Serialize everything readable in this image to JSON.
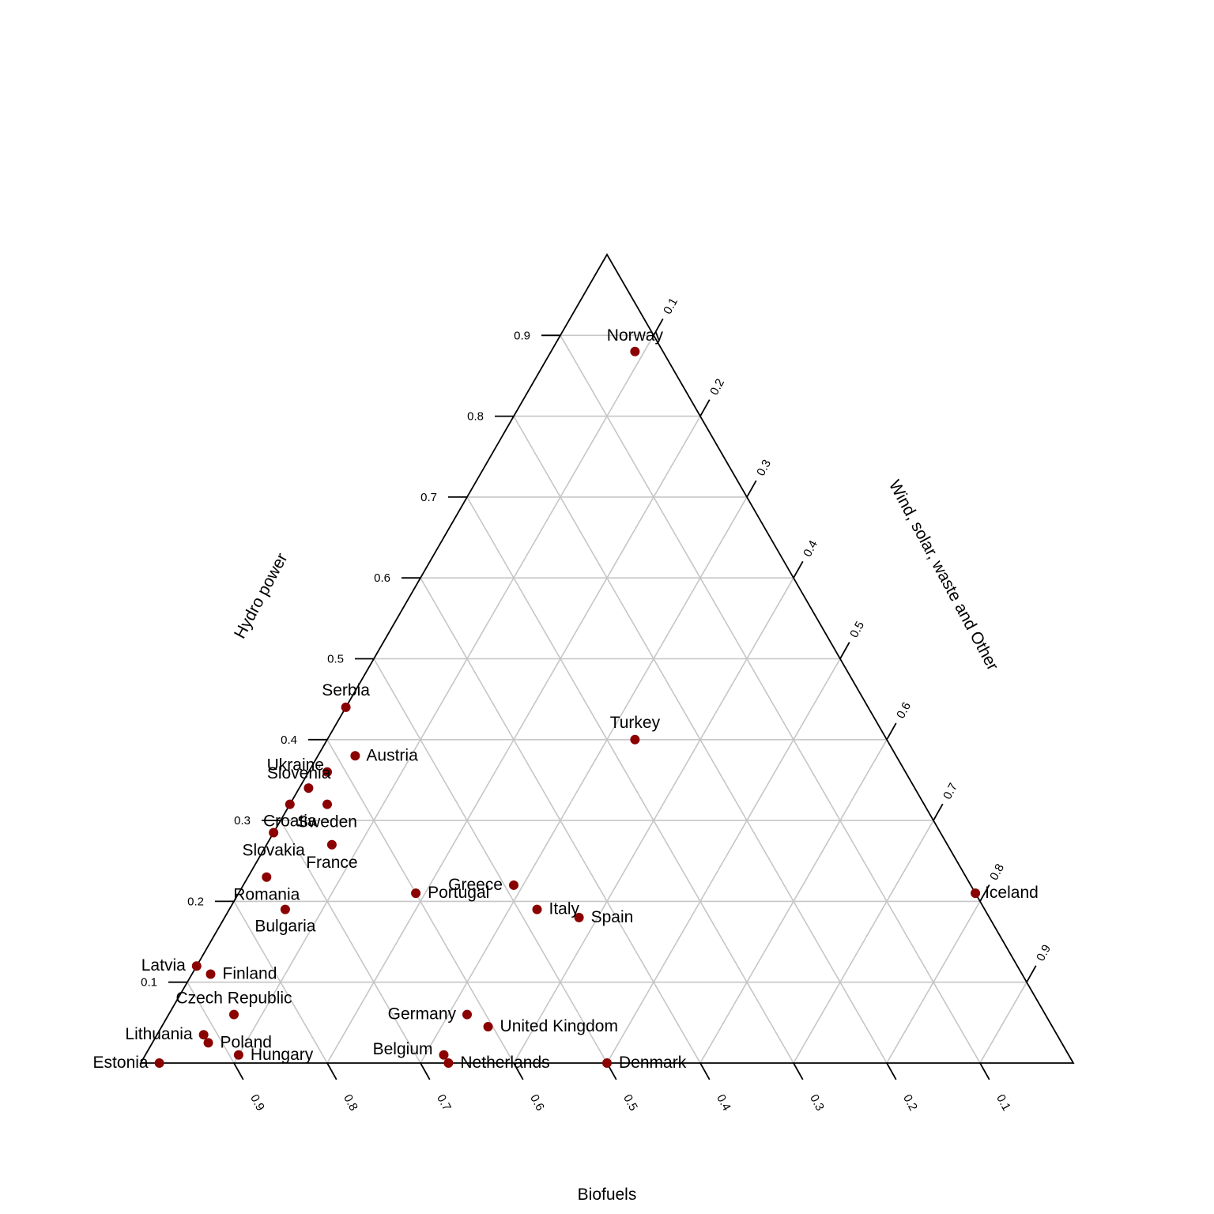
{
  "chart_data": {
    "type": "scatter",
    "subtype": "ternary",
    "title": "",
    "axes": {
      "left": {
        "label": "Hydro power",
        "ticks": [
          "0.1",
          "0.2",
          "0.3",
          "0.4",
          "0.5",
          "0.6",
          "0.7",
          "0.8",
          "0.9"
        ]
      },
      "right": {
        "label": "Wind, solar, waste and Other",
        "ticks": [
          "0.1",
          "0.2",
          "0.3",
          "0.4",
          "0.5",
          "0.6",
          "0.7",
          "0.8",
          "0.9"
        ]
      },
      "bottom": {
        "label": "Biofuels",
        "ticks": [
          "0.9",
          "0.8",
          "0.7",
          "0.6",
          "0.5",
          "0.4",
          "0.3",
          "0.2",
          "0.1"
        ]
      }
    },
    "grid": true,
    "point_color": "#8b0000",
    "points": [
      {
        "name": "Norway",
        "hydro": 0.88,
        "wind_solar_other": 0.09,
        "biofuels": 0.03
      },
      {
        "name": "Serbia",
        "hydro": 0.44,
        "wind_solar_other": 0.0,
        "biofuels": 0.56
      },
      {
        "name": "Turkey",
        "hydro": 0.4,
        "wind_solar_other": 0.33,
        "biofuels": 0.27
      },
      {
        "name": "Austria",
        "hydro": 0.38,
        "wind_solar_other": 0.04,
        "biofuels": 0.58
      },
      {
        "name": "Ukraine",
        "hydro": 0.36,
        "wind_solar_other": 0.02,
        "biofuels": 0.62
      },
      {
        "name": "Slovenia",
        "hydro": 0.34,
        "wind_solar_other": 0.01,
        "biofuels": 0.65
      },
      {
        "name": "Croatia",
        "hydro": 0.32,
        "wind_solar_other": 0.0,
        "biofuels": 0.68
      },
      {
        "name": "Sweden",
        "hydro": 0.32,
        "wind_solar_other": 0.04,
        "biofuels": 0.64
      },
      {
        "name": "Slovakia",
        "hydro": 0.285,
        "wind_solar_other": 0.0,
        "biofuels": 0.715
      },
      {
        "name": "France",
        "hydro": 0.27,
        "wind_solar_other": 0.07,
        "biofuels": 0.66
      },
      {
        "name": "Romania",
        "hydro": 0.23,
        "wind_solar_other": 0.02,
        "biofuels": 0.75
      },
      {
        "name": "Greece",
        "hydro": 0.22,
        "wind_solar_other": 0.29,
        "biofuels": 0.49
      },
      {
        "name": "Portugal",
        "hydro": 0.21,
        "wind_solar_other": 0.19,
        "biofuels": 0.6
      },
      {
        "name": "Iceland",
        "hydro": 0.21,
        "wind_solar_other": 0.79,
        "biofuels": 0.0
      },
      {
        "name": "Bulgaria",
        "hydro": 0.19,
        "wind_solar_other": 0.06,
        "biofuels": 0.75
      },
      {
        "name": "Italy",
        "hydro": 0.19,
        "wind_solar_other": 0.33,
        "biofuels": 0.48
      },
      {
        "name": "Spain",
        "hydro": 0.18,
        "wind_solar_other": 0.38,
        "biofuels": 0.44
      },
      {
        "name": "Latvia",
        "hydro": 0.12,
        "wind_solar_other": 0.0,
        "biofuels": 0.88
      },
      {
        "name": "Finland",
        "hydro": 0.11,
        "wind_solar_other": 0.02,
        "biofuels": 0.87
      },
      {
        "name": "Czech Republic",
        "hydro": 0.06,
        "wind_solar_other": 0.07,
        "biofuels": 0.87
      },
      {
        "name": "Germany",
        "hydro": 0.06,
        "wind_solar_other": 0.32,
        "biofuels": 0.62
      },
      {
        "name": "United Kingdom",
        "hydro": 0.045,
        "wind_solar_other": 0.35,
        "biofuels": 0.605
      },
      {
        "name": "Lithuania",
        "hydro": 0.035,
        "wind_solar_other": 0.05,
        "biofuels": 0.915
      },
      {
        "name": "Poland",
        "hydro": 0.025,
        "wind_solar_other": 0.06,
        "biofuels": 0.915
      },
      {
        "name": "Belgium",
        "hydro": 0.01,
        "wind_solar_other": 0.32,
        "biofuels": 0.67
      },
      {
        "name": "Hungary",
        "hydro": 0.01,
        "wind_solar_other": 0.1,
        "biofuels": 0.89
      },
      {
        "name": "Netherlands",
        "hydro": 0.0,
        "wind_solar_other": 0.33,
        "biofuels": 0.67
      },
      {
        "name": "Estonia",
        "hydro": 0.0,
        "wind_solar_other": 0.02,
        "biofuels": 0.98
      },
      {
        "name": "Denmark",
        "hydro": 0.0,
        "wind_solar_other": 0.5,
        "biofuels": 0.5
      }
    ]
  }
}
